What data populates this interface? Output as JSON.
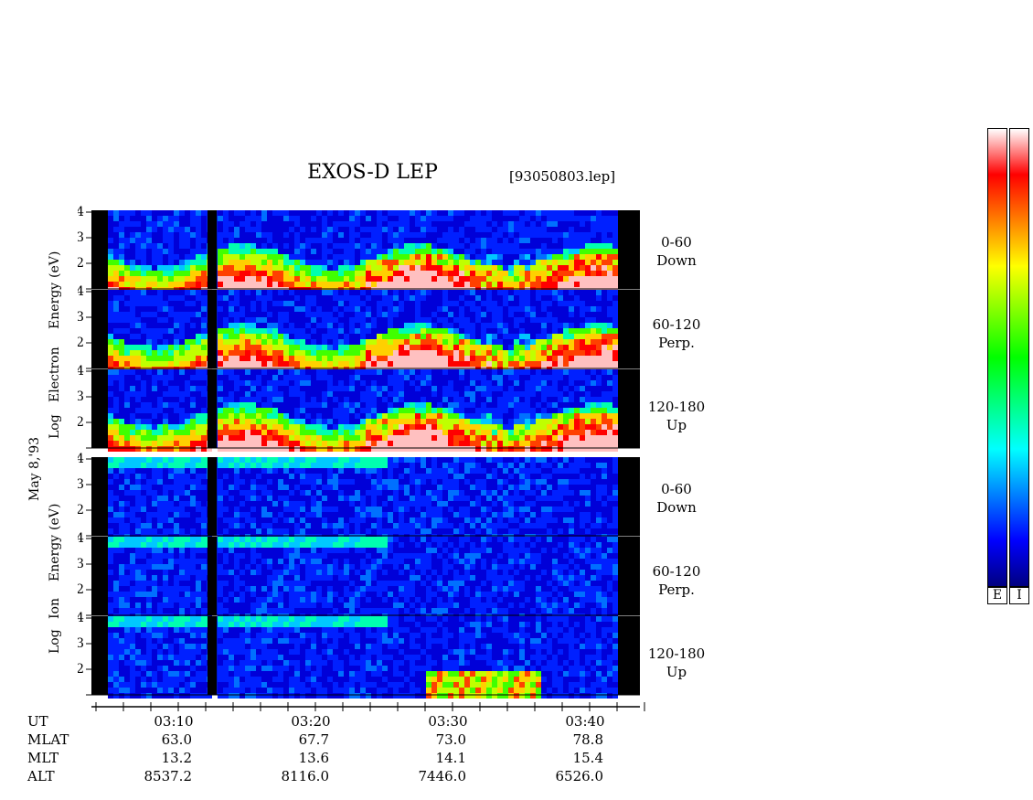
{
  "chart_data": {
    "type": "heatmap",
    "title": "EXOS-D LEP",
    "file_id": "[93050803.lep]",
    "date_label": "May  8,'93",
    "time_ticks": [
      "03:10",
      "03:20",
      "03:30",
      "03:40"
    ],
    "electron_label": {
      "line1": "Log",
      "line2": "Electron",
      "line3": "Energy",
      "line4": "(eV)"
    },
    "ion_label": {
      "line1": "Log",
      "line2": "Ion",
      "line3": "Energy",
      "line4": "(eV)"
    },
    "y_ticks": {
      "panel_top": [
        "4",
        "3",
        "2"
      ],
      "panel_bottom": [
        "3",
        "2"
      ]
    },
    "panels": [
      {
        "species": "Electron",
        "pitch": "0-60",
        "direction": "Down"
      },
      {
        "species": "Electron",
        "pitch": "60-120",
        "direction": "Perp."
      },
      {
        "species": "Electron",
        "pitch": "120-180",
        "direction": "Up"
      },
      {
        "species": "Ion",
        "pitch": "0-60",
        "direction": "Down"
      },
      {
        "species": "Ion",
        "pitch": "60-120",
        "direction": "Perp."
      },
      {
        "species": "Ion",
        "pitch": "120-180",
        "direction": "Up"
      }
    ],
    "ephemeris": {
      "labels": [
        "UT",
        "MLAT",
        "MLT",
        "ALT"
      ],
      "MLAT": [
        "63.0",
        "67.7",
        "73.0",
        "78.8"
      ],
      "MLT": [
        "13.2",
        "13.6",
        "14.1",
        "15.4"
      ],
      "ALT": [
        "8537.2",
        "8116.0",
        "7446.0",
        "6526.0"
      ]
    },
    "colorbar": {
      "labels": [
        "E",
        "I"
      ],
      "colors": [
        "#000080",
        "#0000ff",
        "#0080ff",
        "#00ffff",
        "#00ff80",
        "#00ff00",
        "#80ff00",
        "#ffff00",
        "#ff8000",
        "#ff0000",
        "#ffffff"
      ]
    }
  }
}
